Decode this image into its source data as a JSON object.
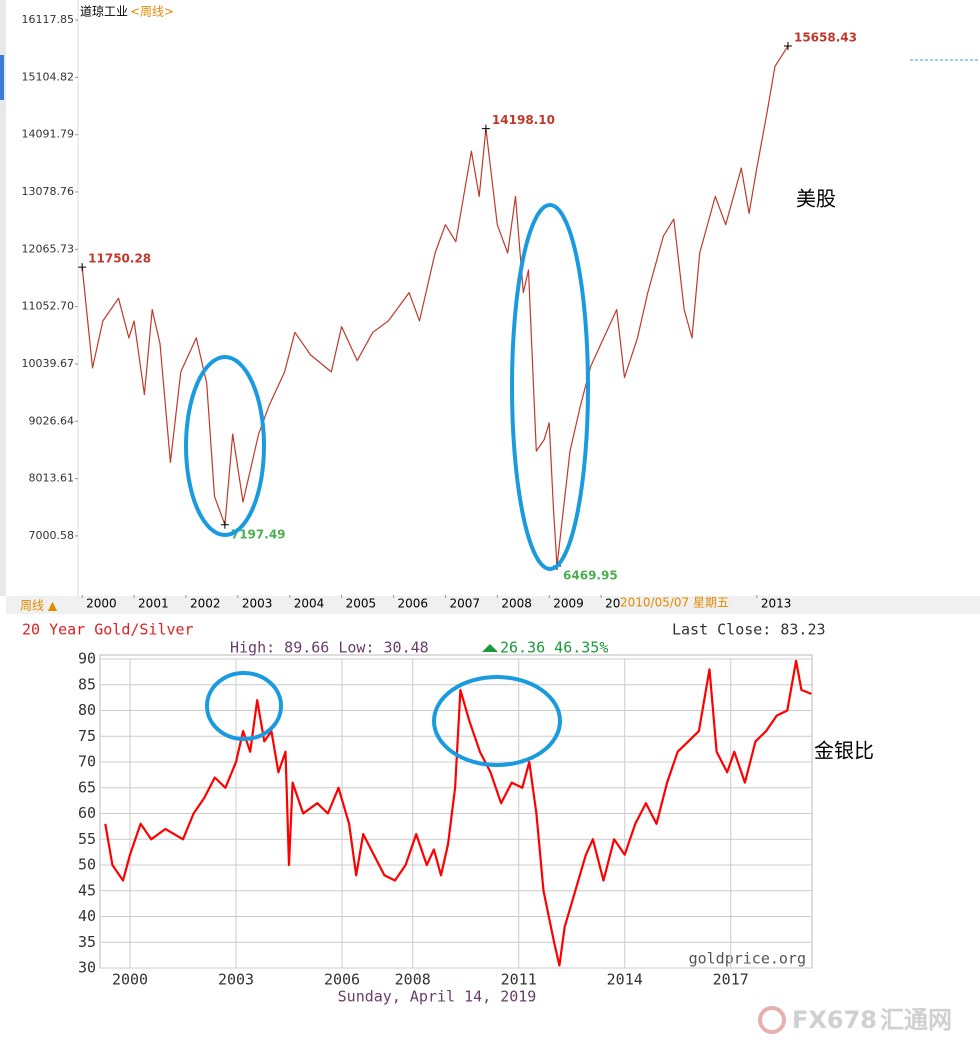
{
  "chart_data": [
    {
      "type": "line",
      "title": "道琼工业",
      "subtitle": "<周线>",
      "tab": "周线 ▲",
      "tooltip": "2010/05/07 星期五",
      "annotation": "美股",
      "color": "#c0392b",
      "label_up_color": "#c0392b",
      "label_down_color": "#4caf50",
      "grid": false,
      "xlim": [
        1999.92,
        2017.3
      ],
      "ylim": [
        5957,
        16383
      ],
      "xticks": [
        2000,
        2001,
        2002,
        2003,
        2004,
        2005,
        2006,
        2007,
        2008,
        2009,
        {
          "value": 2010,
          "label": "20"
        },
        2013
      ],
      "yticks": [
        7000.58,
        8013.61,
        9026.64,
        10039.67,
        {
          "value": 11052.7,
          "label": "11052.70"
        },
        12065.73,
        13078.76,
        14091.79,
        15104.82,
        16117.85
      ],
      "x": [
        2000.0,
        2000.2,
        2000.4,
        2000.7,
        2000.9,
        2001.0,
        2001.2,
        2001.35,
        2001.5,
        2001.7,
        2001.9,
        2002.2,
        2002.4,
        2002.55,
        2002.75,
        2002.9,
        2003.1,
        2003.4,
        2003.6,
        2003.9,
        2004.1,
        2004.4,
        2004.8,
        2005.0,
        2005.3,
        2005.6,
        2005.9,
        2006.3,
        2006.5,
        2006.8,
        2007.0,
        2007.2,
        2007.5,
        2007.65,
        2007.78,
        2008.0,
        2008.2,
        2008.35,
        2008.5,
        2008.6,
        2008.75,
        2008.9,
        2009.0,
        2009.08,
        2009.15,
        2009.4,
        2009.6,
        2009.8,
        2010.0,
        2010.3,
        2010.45,
        2010.7,
        2010.9,
        2011.2,
        2011.4,
        2011.6,
        2011.75,
        2011.9,
        2012.2,
        2012.4,
        2012.7,
        2012.85,
        2013.0,
        2013.2,
        2013.35,
        2013.6
      ],
      "values": [
        11750.28,
        9970,
        10800,
        11200,
        10500,
        10800,
        9500,
        11000,
        10400,
        8300,
        9900,
        10500,
        9700,
        7700,
        7197.49,
        8800,
        7600,
        8800,
        9300,
        9900,
        10600,
        10200,
        9900,
        10700,
        10100,
        10600,
        10800,
        11300,
        10800,
        12000,
        12500,
        12200,
        13800,
        13000,
        14198.1,
        12500,
        12000,
        13000,
        11300,
        11700,
        8500,
        8700,
        9000,
        7500,
        6469.95,
        8500,
        9300,
        10000,
        10400,
        11000,
        9800,
        10500,
        11300,
        12300,
        12600,
        11000,
        10500,
        12000,
        13000,
        12500,
        13500,
        12700,
        13500,
        14500,
        15300,
        15658.43
      ],
      "value_labels": [
        "11750.28",
        null,
        null,
        null,
        null,
        null,
        null,
        null,
        null,
        null,
        null,
        null,
        null,
        null,
        "7197.49",
        null,
        null,
        null,
        null,
        null,
        null,
        null,
        null,
        null,
        null,
        null,
        null,
        null,
        null,
        null,
        null,
        null,
        null,
        null,
        "14198.10",
        null,
        null,
        null,
        null,
        null,
        null,
        null,
        null,
        null,
        "6469.95",
        null,
        null,
        null,
        null,
        null,
        null,
        null,
        null,
        null,
        null,
        null,
        null,
        null,
        null,
        null,
        null,
        null,
        null,
        null,
        null,
        "15658.43"
      ]
    },
    {
      "type": "line",
      "title": "20 Year Gold/Silver",
      "last_close": "Last Close: 83.23",
      "high_low": "High: 89.66 Low: 30.48",
      "change": "26.36 46.35%",
      "footer": "Sunday, April 14, 2019",
      "watermark": "goldprice.org",
      "annotation": "金银比",
      "color": "#ff0000",
      "grid": true,
      "xlim": [
        1999.15,
        2019.3
      ],
      "ylim": [
        30,
        90
      ],
      "xticks": [
        2000,
        2003,
        2006,
        2008,
        2011,
        2014,
        2017
      ],
      "yticks": [
        30,
        35,
        40,
        45,
        50,
        55,
        60,
        65,
        70,
        75,
        80,
        85,
        90
      ],
      "x": [
        1999.3,
        1999.5,
        1999.8,
        2000.0,
        2000.3,
        2000.6,
        2001.0,
        2001.5,
        2001.8,
        2002.1,
        2002.4,
        2002.7,
        2003.0,
        2003.2,
        2003.4,
        2003.6,
        2003.8,
        2004.0,
        2004.2,
        2004.4,
        2004.5,
        2004.6,
        2004.9,
        2005.3,
        2005.6,
        2005.9,
        2006.2,
        2006.4,
        2006.6,
        2006.9,
        2007.2,
        2007.5,
        2007.8,
        2008.1,
        2008.4,
        2008.6,
        2008.8,
        2009.0,
        2009.2,
        2009.35,
        2009.6,
        2009.9,
        2010.2,
        2010.5,
        2010.8,
        2011.1,
        2011.3,
        2011.5,
        2011.7,
        2011.85,
        2012.0,
        2012.15,
        2012.3,
        2012.6,
        2012.9,
        2013.1,
        2013.4,
        2013.7,
        2014.0,
        2014.3,
        2014.6,
        2014.9,
        2015.2,
        2015.5,
        2015.8,
        2016.1,
        2016.4,
        2016.6,
        2016.9,
        2017.1,
        2017.4,
        2017.7,
        2018.0,
        2018.3,
        2018.6,
        2018.85,
        2019.0,
        2019.28
      ],
      "values": [
        58,
        50,
        47,
        52,
        58,
        55,
        57,
        55,
        60,
        63,
        67,
        65,
        70,
        76,
        72,
        82,
        74,
        76,
        68,
        72,
        50,
        66,
        60,
        62,
        60,
        65,
        58,
        48,
        56,
        52,
        48,
        47,
        50,
        56,
        50,
        53,
        48,
        54,
        65,
        84,
        78,
        72,
        68,
        62,
        66,
        65,
        70,
        60,
        45,
        40,
        35,
        30.48,
        38,
        45,
        52,
        55,
        47,
        55,
        52,
        58,
        62,
        58,
        66,
        72,
        74,
        76,
        88,
        72,
        68,
        72,
        66,
        74,
        76,
        79,
        80,
        89.66,
        84,
        83.23
      ]
    }
  ],
  "logo": {
    "brand": "FX678",
    "name": "汇通网"
  }
}
